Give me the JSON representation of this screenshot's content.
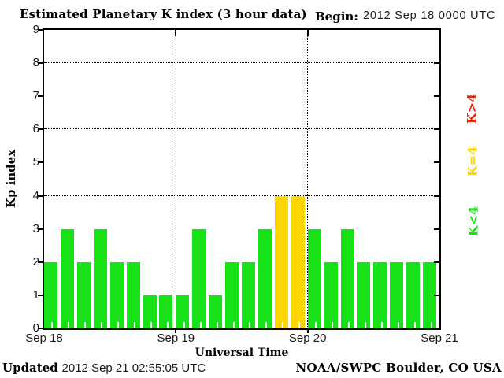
{
  "header": {
    "title": "Estimated Planetary K index (3 hour data)",
    "begin_label": "Begin:",
    "begin_value": "2012 Sep 18 0000 UTC"
  },
  "footer": {
    "updated_label": "Updated",
    "updated_value": "2012 Sep 21 02:55:05 UTC",
    "source": "NOAA/SWPC Boulder, CO USA"
  },
  "chart_data": {
    "type": "bar",
    "title": "Estimated Planetary K index (3 hour data)",
    "xlabel": "Universal Time",
    "ylabel": "Kp index",
    "ylim": [
      0,
      9
    ],
    "yticks": [
      0,
      1,
      2,
      3,
      4,
      5,
      6,
      7,
      8,
      9
    ],
    "grid_y": [
      4,
      6,
      8
    ],
    "grid_on": true,
    "xtick_labels": [
      "Sep 18",
      "Sep 19",
      "Sep 20",
      "Sep 21"
    ],
    "begin_utc": "2012 Sep 18 0000 UTC",
    "bar_period_hours": 3,
    "series": [
      {
        "day": "Sep 18",
        "values": [
          2,
          3,
          2,
          3,
          2,
          2,
          1,
          1
        ]
      },
      {
        "day": "Sep 19",
        "values": [
          1,
          3,
          1,
          2,
          2,
          3,
          4,
          4
        ]
      },
      {
        "day": "Sep 20",
        "values": [
          3,
          2,
          3,
          2,
          2,
          2,
          2,
          2
        ]
      }
    ],
    "legend": [
      {
        "label": "K>4",
        "color": "#ee2200"
      },
      {
        "label": "K=4",
        "color": "#ffd700"
      },
      {
        "label": "K<4",
        "color": "#17e217"
      }
    ],
    "legend_position": "right",
    "frame_color": "#000000",
    "background_color": "#ffffff"
  }
}
